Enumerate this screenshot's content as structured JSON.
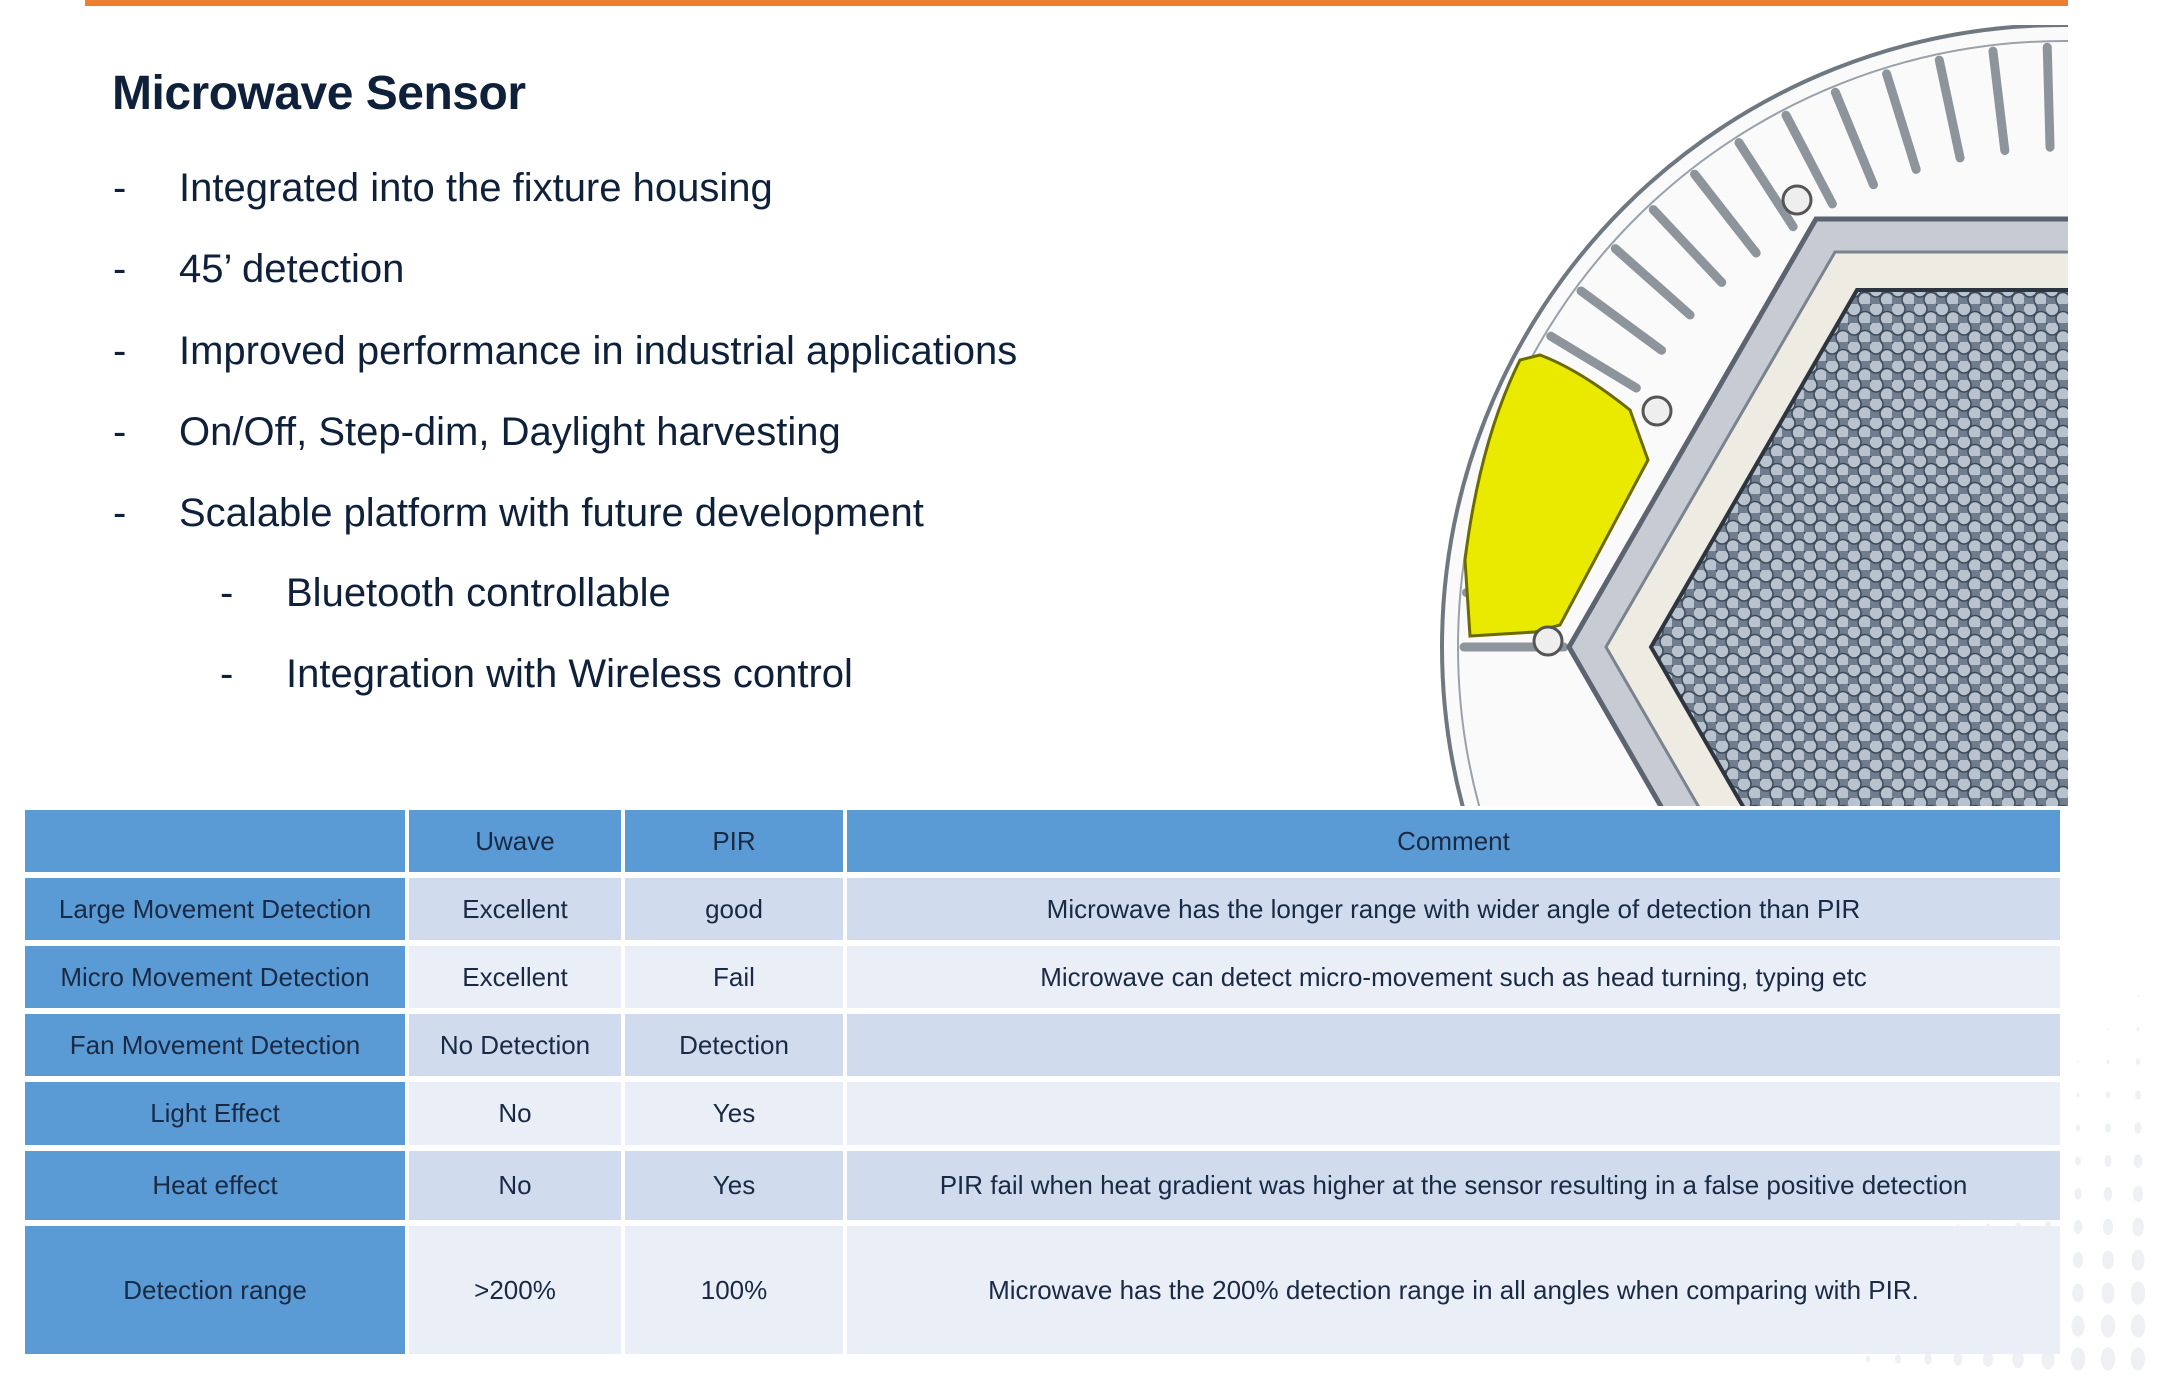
{
  "slide": {
    "title": "Microwave Sensor",
    "bullets": [
      {
        "text": "Integrated into the fixture housing",
        "level": 1
      },
      {
        "text": "45’ detection",
        "level": 1
      },
      {
        "text": "Improved performance in industrial applications",
        "level": 1
      },
      {
        "text": "On/Off, Step-dim, Daylight harvesting",
        "level": 1
      },
      {
        "text": "Scalable platform with future development",
        "level": 1
      },
      {
        "text": "Bluetooth controllable",
        "level": 2
      },
      {
        "text": "Integration with Wireless control",
        "level": 2
      }
    ],
    "dash": "-",
    "accent_color": "#ed7d31",
    "table_header_color": "#5b9bd5"
  },
  "table": {
    "headers": [
      "",
      "Uwave",
      "PIR",
      "Comment"
    ],
    "rows": [
      [
        "Large Movement Detection",
        "Excellent",
        "good",
        "Microwave has the longer range with wider angle of detection than PIR"
      ],
      [
        "Micro Movement Detection",
        "Excellent",
        "Fail",
        "Microwave can detect micro-movement such as head turning, typing etc"
      ],
      [
        "Fan Movement Detection",
        "No Detection",
        "Detection",
        ""
      ],
      [
        "Light Effect",
        "No",
        "Yes",
        ""
      ],
      [
        "Heat effect",
        "No",
        "Yes",
        "PIR fail when heat gradient was higher at the sensor resulting in a false positive detection"
      ],
      [
        "Detection range",
        ">200%",
        "100%",
        "Microwave has the 200% detection range in all angles when comparing with PIR."
      ]
    ]
  }
}
